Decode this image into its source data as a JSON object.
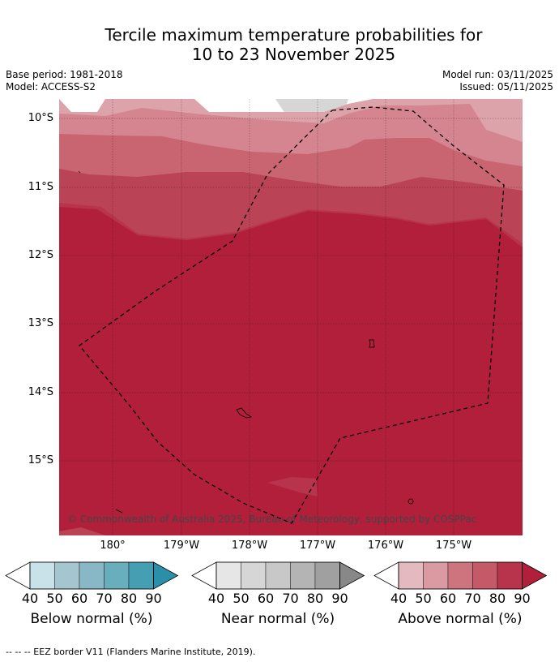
{
  "title": {
    "line1": "Tercile maximum temperature probabilities for",
    "line2": "10 to 23 November 2025"
  },
  "meta": {
    "base_period": "Base period: 1981-2018",
    "model": "Model: ACCESS-S2",
    "model_run": "Model run: 03/11/2025",
    "issued": "Issued: 05/11/2025"
  },
  "axes": {
    "lat_labels": [
      "10°S",
      "11°S",
      "12°S",
      "13°S",
      "14°S",
      "15°S"
    ],
    "lon_labels": [
      "180°",
      "179°W",
      "178°W",
      "177°W",
      "176°W",
      "175°W"
    ]
  },
  "copyright": "© Commonwealth of Australia 2025, Bureau of Meteorology, supported by COSPPac",
  "colorbars": {
    "ticks": [
      "40",
      "50",
      "60",
      "70",
      "80",
      "90"
    ],
    "below": {
      "label": "Below normal (%)",
      "colors": [
        "#c9e1e8",
        "#a5c6cf",
        "#88b8c5",
        "#68aebd",
        "#459fb2",
        "#2a8fa8"
      ]
    },
    "near": {
      "label": "Near normal (%)",
      "colors": [
        "#e6e6e6",
        "#d6d6d6",
        "#c8c8c8",
        "#b4b4b4",
        "#a0a0a0",
        "#888888"
      ]
    },
    "above": {
      "label": "Above normal (%)",
      "colors": [
        "#e5b9c0",
        "#d99aa1",
        "#cd747f",
        "#c45967",
        "#b8344c",
        "#b21f3b"
      ]
    }
  },
  "footnote": "--  --  -- EEZ border V11 (Flanders Marine Institute, 2019)."
}
